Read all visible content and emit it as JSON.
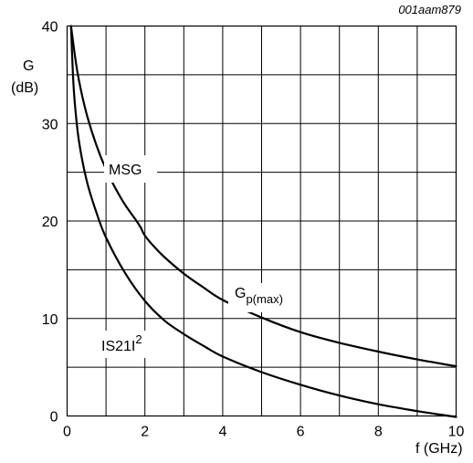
{
  "chart_data": {
    "type": "line",
    "reference": "001aam879",
    "ylabel_symbol": "G",
    "ylabel_unit": "(dB)",
    "xlabel": "f (GHz)",
    "xlim": [
      0,
      10
    ],
    "ylim": [
      0,
      40
    ],
    "x_ticks": [
      "0",
      "2",
      "4",
      "6",
      "8",
      "10"
    ],
    "y_ticks": [
      "0",
      "10",
      "20",
      "30",
      "40"
    ],
    "grid": true,
    "series": [
      {
        "name": "MSG",
        "points": [
          [
            0.1,
            40
          ],
          [
            0.2,
            37
          ],
          [
            0.3,
            34.5
          ],
          [
            0.5,
            31
          ],
          [
            0.75,
            27.8
          ],
          [
            1.0,
            25.3
          ],
          [
            1.25,
            23.3
          ],
          [
            1.5,
            21.6
          ],
          [
            1.75,
            20.2
          ],
          [
            1.9,
            19.3
          ]
        ]
      },
      {
        "name": "Gp(max)",
        "points": [
          [
            1.9,
            19.3
          ],
          [
            2.0,
            18.5
          ],
          [
            2.25,
            17.3
          ],
          [
            2.5,
            16.3
          ],
          [
            3.0,
            14.6
          ],
          [
            3.5,
            13.2
          ],
          [
            4.0,
            11.9
          ],
          [
            5.0,
            10.1
          ],
          [
            6.0,
            8.6
          ],
          [
            7.0,
            7.5
          ],
          [
            8.0,
            6.6
          ],
          [
            9.0,
            5.8
          ],
          [
            10.0,
            5.1
          ]
        ]
      },
      {
        "name": "IS21I2",
        "points": [
          [
            0.1,
            40
          ],
          [
            0.15,
            35
          ],
          [
            0.2,
            32
          ],
          [
            0.3,
            28.3
          ],
          [
            0.5,
            24.2
          ],
          [
            0.75,
            20.9
          ],
          [
            1.0,
            18.3
          ],
          [
            1.5,
            14.6
          ],
          [
            2.0,
            11.8
          ],
          [
            2.5,
            9.8
          ],
          [
            3.0,
            8.4
          ],
          [
            3.5,
            7.2
          ],
          [
            4.0,
            6.1
          ],
          [
            5.0,
            4.5
          ],
          [
            6.0,
            3.2
          ],
          [
            7.0,
            2.1
          ],
          [
            8.0,
            1.2
          ],
          [
            9.0,
            0.5
          ],
          [
            10.0,
            -0.1
          ]
        ]
      }
    ],
    "annotations": {
      "msg": "MSG",
      "gp_main": "G",
      "gp_sub": "p(max)",
      "s21_main": "IS21I",
      "s21_sup": "2"
    }
  }
}
